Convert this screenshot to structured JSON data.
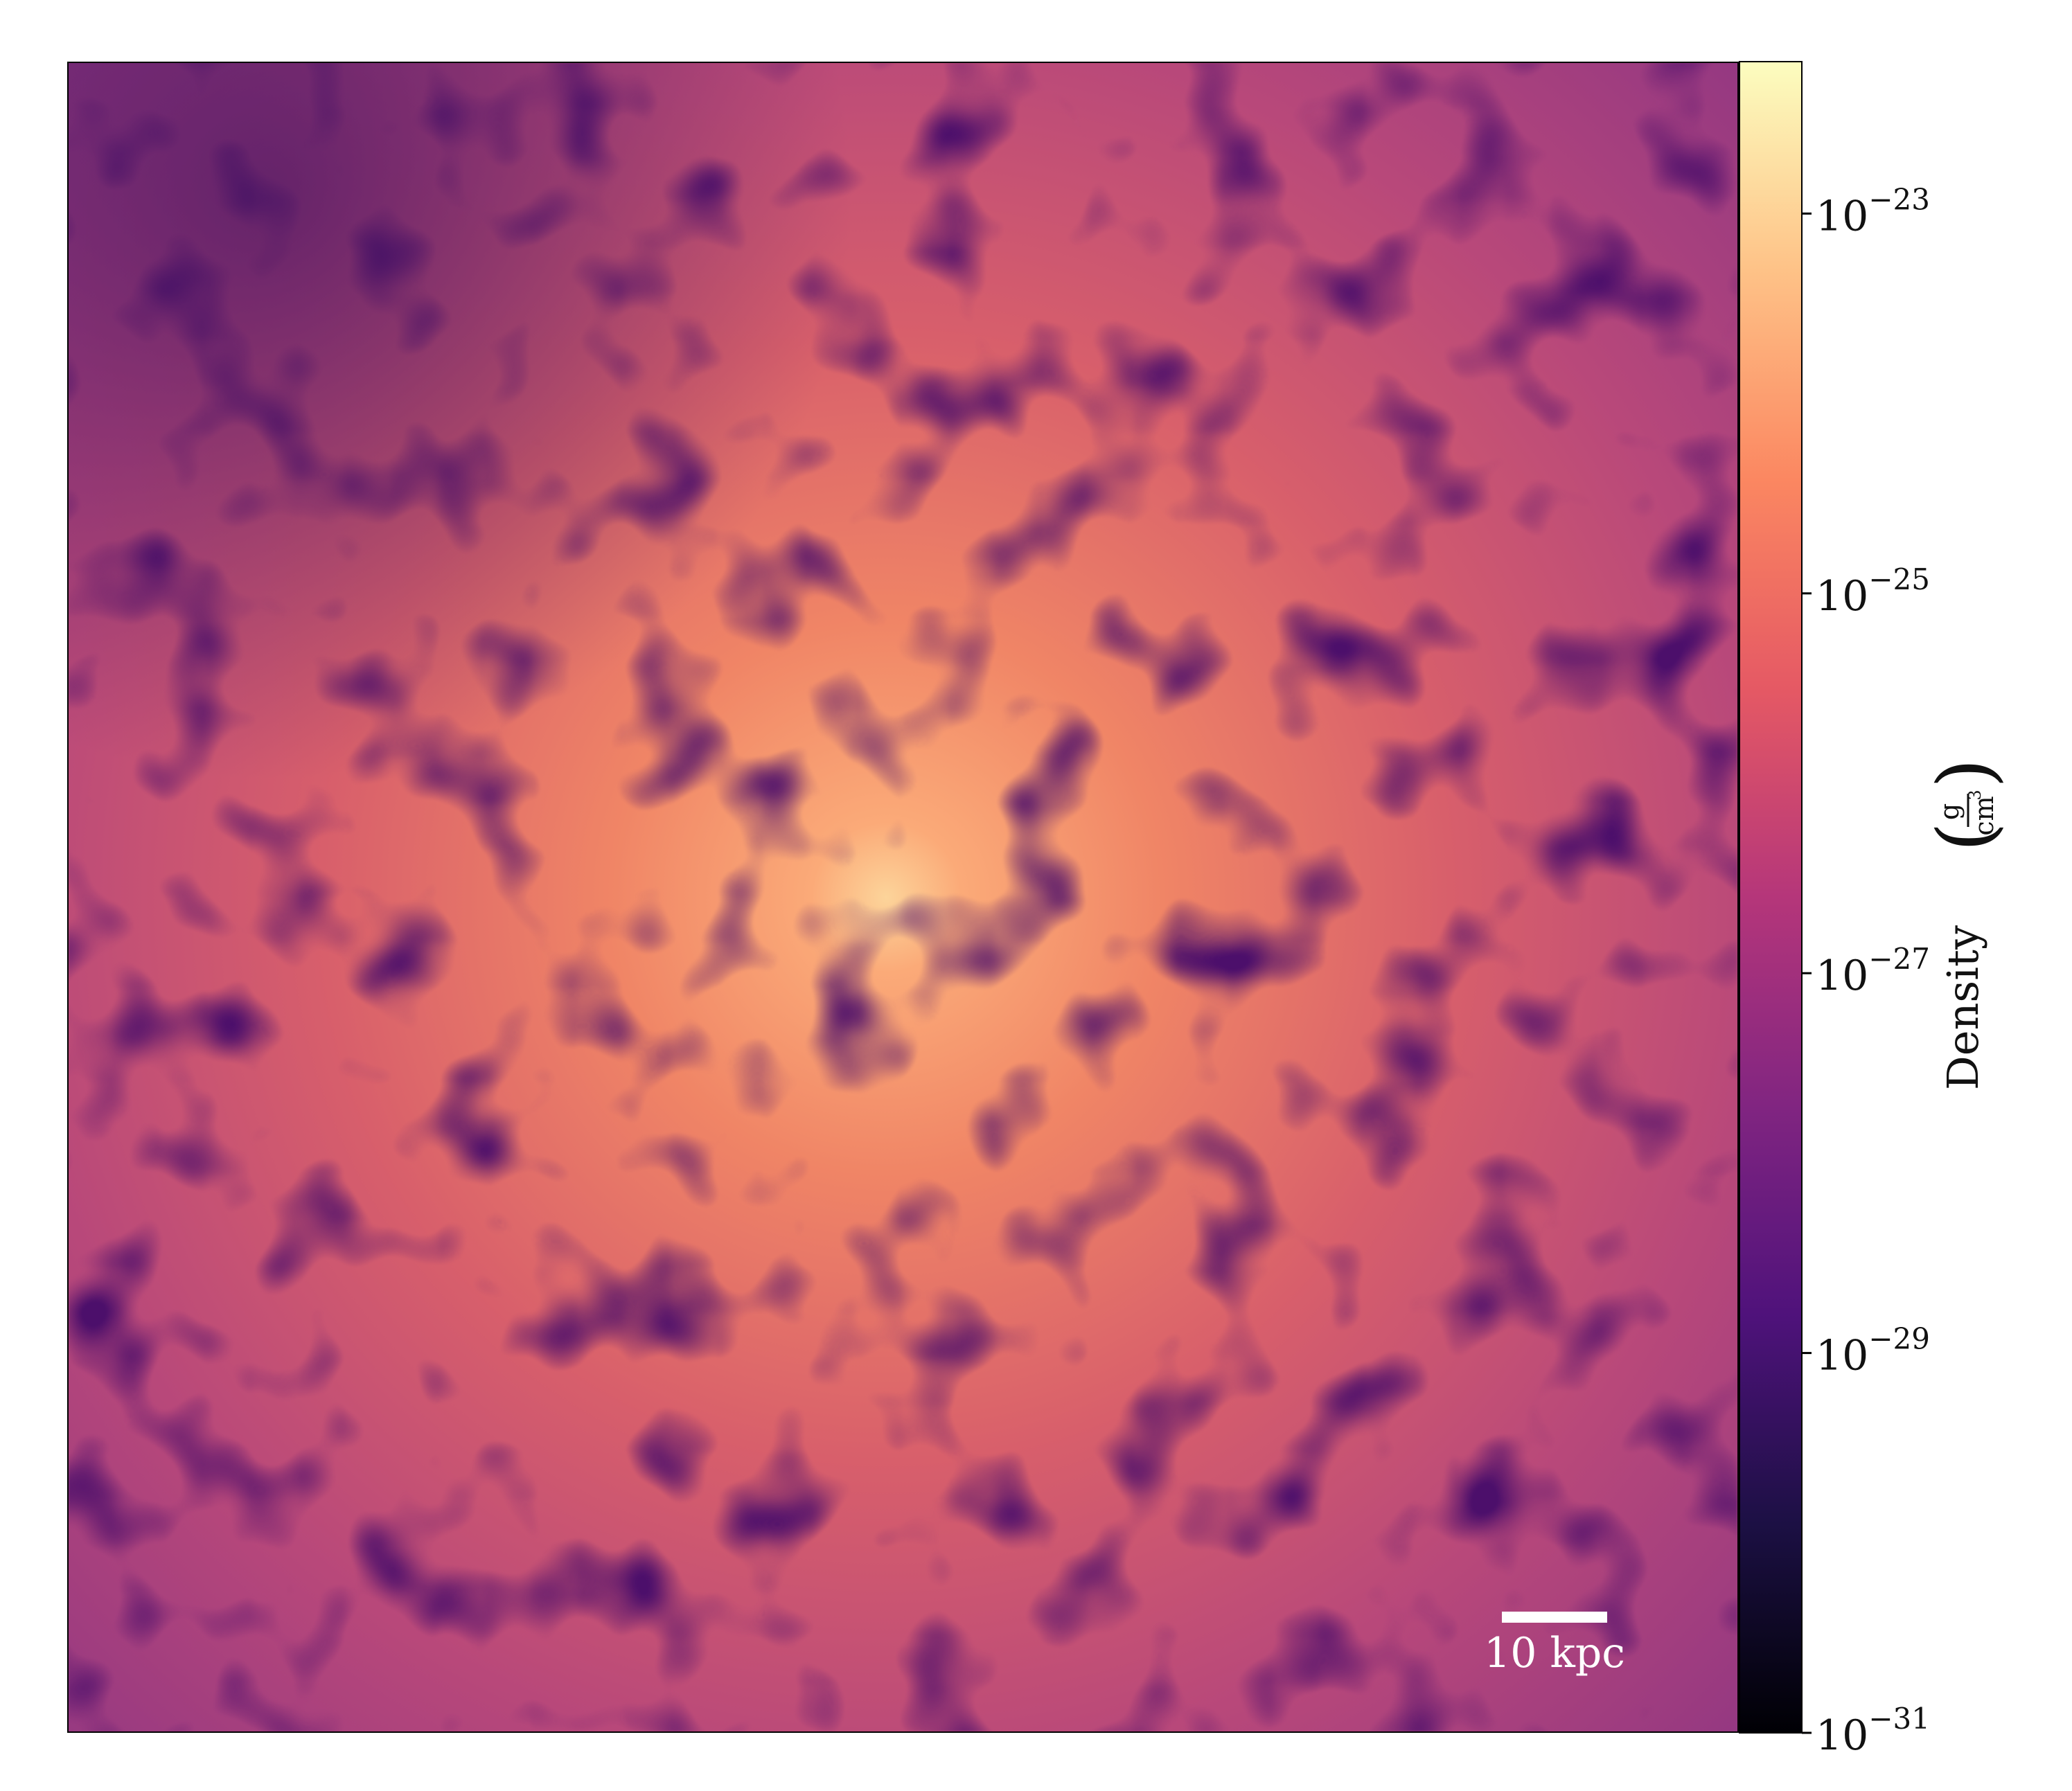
{
  "chart_data": {
    "type": "heatmap",
    "title": "",
    "xlabel": "",
    "ylabel": "",
    "colormap": "magma",
    "colorbar": {
      "label": "Density",
      "unit_numerator": "g",
      "unit_denominator": "cm",
      "unit_denominator_power": "3",
      "scale": "log",
      "range_exponents": [
        -31,
        -22.2
      ],
      "tick_exponents": [
        -23,
        -25,
        -27,
        -29,
        -31
      ],
      "tick_base": "10",
      "tick_labels": [
        {
          "base": "10",
          "exponent": "−23"
        },
        {
          "base": "10",
          "exponent": "−25"
        },
        {
          "base": "10",
          "exponent": "−27"
        },
        {
          "base": "10",
          "exponent": "−29"
        },
        {
          "base": "10",
          "exponent": "−31"
        }
      ]
    },
    "scale_bar": {
      "label": "10 kpc",
      "length": 10,
      "unit": "kpc",
      "color": "#ffffff"
    },
    "peak_location": "center",
    "grid": false,
    "legend": "none"
  },
  "colors": {
    "magma_stops": [
      "#000004",
      "#1c1044",
      "#4f127b",
      "#812581",
      "#b5367a",
      "#e55964",
      "#fb8761",
      "#fec287",
      "#fcfdbf"
    ]
  }
}
